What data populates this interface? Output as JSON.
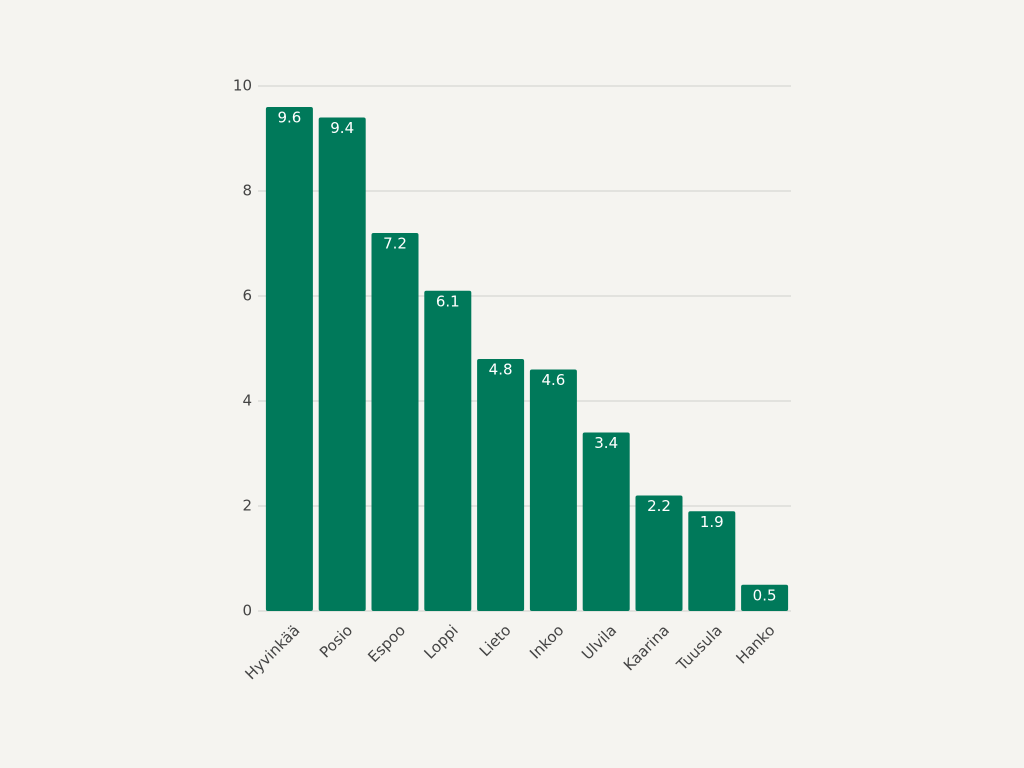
{
  "chart_data": {
    "type": "bar",
    "categories": [
      "Hyvinkää",
      "Posio",
      "Espoo",
      "Loppi",
      "Lieto",
      "Inkoo",
      "Ulvila",
      "Kaarina",
      "Tuusula",
      "Hanko"
    ],
    "values": [
      9.6,
      9.4,
      7.2,
      6.1,
      4.8,
      4.6,
      3.4,
      2.2,
      1.9,
      0.5
    ],
    "color": "#00795a",
    "ylim": [
      0,
      10
    ],
    "yticks": [
      0,
      2,
      4,
      6,
      8,
      10
    ],
    "grid": true
  }
}
